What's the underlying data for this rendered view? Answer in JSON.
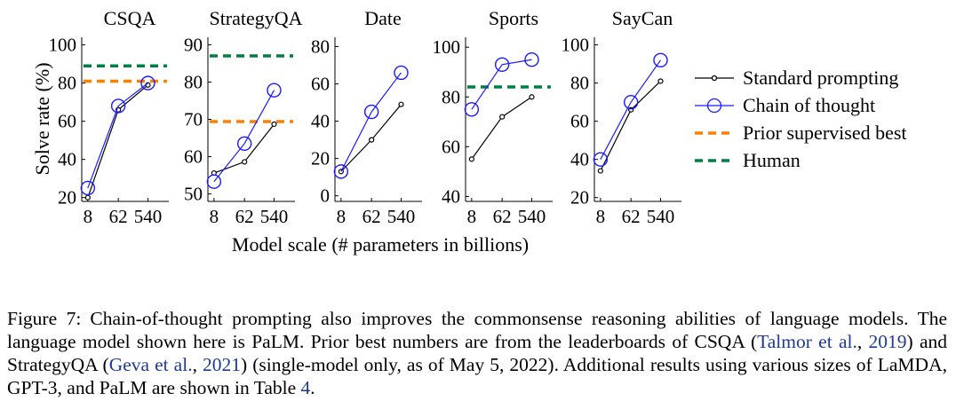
{
  "chart_data": [
    {
      "type": "line",
      "title": "CSQA",
      "categories": [
        "8",
        "62",
        "540"
      ],
      "ylim": [
        18,
        104
      ],
      "yticks": [
        20,
        40,
        60,
        80,
        100
      ],
      "series": [
        {
          "name": "Standard prompting",
          "values": [
            20,
            66,
            79
          ]
        },
        {
          "name": "Chain of thought",
          "values": [
            25,
            68,
            80
          ]
        }
      ],
      "baselines": [
        {
          "name": "Prior supervised best",
          "value": 81
        },
        {
          "name": "Human",
          "value": 89
        }
      ]
    },
    {
      "type": "line",
      "title": "StrategyQA",
      "categories": [
        "8",
        "62",
        "540"
      ],
      "ylim": [
        48,
        92
      ],
      "yticks": [
        50,
        60,
        70,
        80,
        90
      ],
      "series": [
        {
          "name": "Standard prompting",
          "values": [
            55.6,
            58.6,
            68.7
          ]
        },
        {
          "name": "Chain of thought",
          "values": [
            53.3,
            63.5,
            77.8
          ]
        }
      ],
      "baselines": [
        {
          "name": "Prior supervised best",
          "value": 69.4
        },
        {
          "name": "Human",
          "value": 87
        }
      ]
    },
    {
      "type": "line",
      "title": "Date",
      "categories": [
        "8",
        "62",
        "540"
      ],
      "ylim": [
        -3,
        85
      ],
      "yticks": [
        0,
        20,
        40,
        60,
        80
      ],
      "series": [
        {
          "name": "Standard prompting",
          "values": [
            13,
            30,
            49
          ]
        },
        {
          "name": "Chain of thought",
          "values": [
            13,
            45,
            66
          ]
        }
      ],
      "baselines": []
    },
    {
      "type": "line",
      "title": "Sports",
      "categories": [
        "8",
        "62",
        "540"
      ],
      "ylim": [
        38,
        104
      ],
      "yticks": [
        40,
        60,
        80,
        100
      ],
      "series": [
        {
          "name": "Standard prompting",
          "values": [
            55,
            72,
            80
          ]
        },
        {
          "name": "Chain of thought",
          "values": [
            75,
            93,
            95
          ]
        }
      ],
      "baselines": [
        {
          "name": "Human",
          "value": 84
        }
      ]
    },
    {
      "type": "line",
      "title": "SayCan",
      "categories": [
        "8",
        "62",
        "540"
      ],
      "ylim": [
        18,
        104
      ],
      "yticks": [
        20,
        40,
        60,
        80,
        100
      ],
      "series": [
        {
          "name": "Standard prompting",
          "values": [
            34,
            66,
            81
          ]
        },
        {
          "name": "Chain of thought",
          "values": [
            40,
            70,
            92
          ]
        }
      ],
      "baselines": []
    }
  ],
  "axes": {
    "ylabel": "Solve rate (%)",
    "xlabel": "Model scale (# parameters in billions)"
  },
  "legend": {
    "placement": "right",
    "items": [
      {
        "label": "Standard prompting",
        "kind": "small-marker",
        "color": "#000000"
      },
      {
        "label": "Chain of thought",
        "kind": "circle-marker",
        "color": "#1a1aff"
      },
      {
        "label": "Prior supervised best",
        "kind": "dashed",
        "color": "#ff8000"
      },
      {
        "label": "Human",
        "kind": "dashed",
        "color": "#008040"
      }
    ]
  },
  "colors": {
    "standard": "#000000",
    "cot": "#1a1aff",
    "prior": "#ff8000",
    "human": "#008040",
    "link": "#1f3a93"
  },
  "caption": {
    "label": "Figure 7:",
    "text1": "Chain-of-thought prompting also improves the commonsense reasoning abilities of language models. The language model shown here is PaLM. Prior best numbers are from the leaderboards of CSQA (",
    "cite1_author": "Talmor et al.",
    "cite1_sep": ", ",
    "cite1_year": "2019",
    "text2": ") and StrategyQA (",
    "cite2_author": "Geva et al.",
    "cite2_sep": ", ",
    "cite2_year": "2021",
    "text3": ") (single-model only, as of May 5, 2022). Additional results using various sizes of LaMDA, GPT-3, and PaLM are shown in Table ",
    "table_ref": "4",
    "text4": "."
  }
}
